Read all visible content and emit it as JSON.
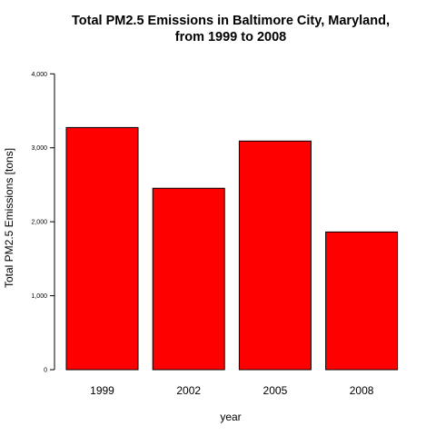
{
  "chart_data": {
    "type": "bar",
    "title": "Total PM2.5 Emissions in Baltimore City, Maryland,",
    "subtitle": "from 1999 to 2008",
    "xlabel": "year",
    "ylabel": "Total PM2.5  Emissions [tons]",
    "categories": [
      "1999",
      "2002",
      "2005",
      "2008"
    ],
    "values": [
      3274,
      2453,
      3091,
      1862
    ],
    "ylim": [
      0,
      4200
    ],
    "y_ticks": [
      0,
      1000,
      2000,
      3000,
      4000
    ],
    "y_tick_labels": [
      "0",
      "1,000",
      "2,000",
      "3,000",
      "4,000"
    ],
    "grid": false,
    "bar_color": "#ff0000",
    "bar_border_color": "#000000"
  }
}
